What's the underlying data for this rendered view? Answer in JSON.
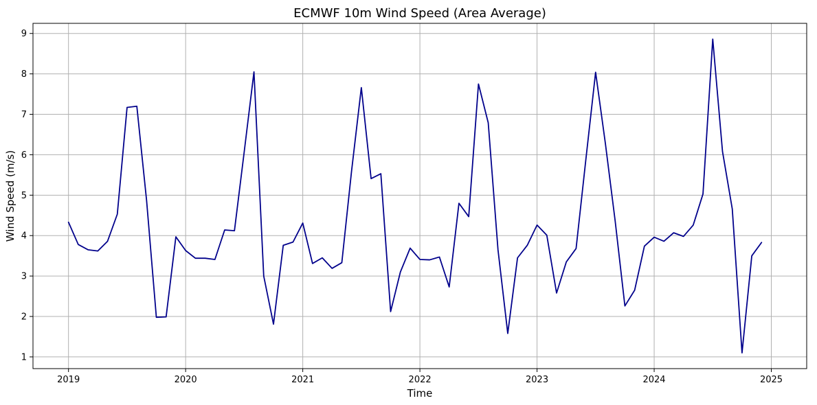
{
  "chart_data": {
    "type": "line",
    "title": "ECMWF 10m Wind Speed (Area Average)",
    "xlabel": "Time",
    "ylabel": "Wind Speed (m/s)",
    "x": [
      "2019-01",
      "2019-02",
      "2019-03",
      "2019-04",
      "2019-05",
      "2019-06",
      "2019-07",
      "2019-08",
      "2019-09",
      "2019-10",
      "2019-11",
      "2019-12",
      "2020-01",
      "2020-02",
      "2020-03",
      "2020-04",
      "2020-05",
      "2020-06",
      "2020-07",
      "2020-08",
      "2020-09",
      "2020-10",
      "2020-11",
      "2020-12",
      "2021-01",
      "2021-02",
      "2021-03",
      "2021-04",
      "2021-05",
      "2021-06",
      "2021-07",
      "2021-08",
      "2021-09",
      "2021-10",
      "2021-11",
      "2021-12",
      "2022-01",
      "2022-02",
      "2022-03",
      "2022-04",
      "2022-05",
      "2022-06",
      "2022-07",
      "2022-08",
      "2022-09",
      "2022-10",
      "2022-11",
      "2022-12",
      "2023-01",
      "2023-02",
      "2023-03",
      "2023-04",
      "2023-05",
      "2023-06",
      "2023-07",
      "2023-08",
      "2023-09",
      "2023-10",
      "2023-11",
      "2023-12",
      "2024-01",
      "2024-02",
      "2024-03",
      "2024-04",
      "2024-05",
      "2024-06",
      "2024-07",
      "2024-08",
      "2024-09",
      "2024-10",
      "2024-11",
      "2024-12"
    ],
    "series": [
      {
        "values": [
          4.33,
          3.78,
          3.65,
          3.62,
          3.86,
          4.53,
          7.17,
          7.2,
          4.87,
          1.98,
          1.99,
          3.97,
          3.63,
          3.44,
          3.44,
          3.41,
          4.14,
          4.12,
          6.07,
          8.05,
          3.0,
          1.81,
          3.76,
          3.84,
          4.31,
          3.31,
          3.45,
          3.19,
          3.33,
          5.6,
          7.66,
          5.41,
          5.53,
          2.12,
          3.1,
          3.69,
          3.41,
          3.4,
          3.47,
          2.73,
          4.8,
          4.47,
          7.75,
          6.79,
          3.65,
          1.58,
          3.45,
          3.76,
          4.26,
          4.01,
          2.58,
          3.35,
          3.68,
          5.88,
          8.04,
          6.28,
          4.37,
          2.26,
          2.65,
          3.74,
          3.96,
          3.86,
          4.07,
          3.98,
          4.26,
          5.03,
          8.86,
          6.08,
          4.66,
          1.1,
          3.5,
          3.83
        ],
        "color": "#00008b"
      }
    ],
    "x_ticks": [
      "2019",
      "2020",
      "2021",
      "2022",
      "2023",
      "2024",
      "2025"
    ],
    "y_ticks": [
      "1",
      "2",
      "3",
      "4",
      "5",
      "6",
      "7",
      "8",
      "9"
    ],
    "xlim": [
      "2018-09-12",
      "2025-04-20"
    ],
    "ylim": [
      0.71,
      9.25
    ],
    "grid": true,
    "grid_color": "#b0b0b0",
    "legend": "none"
  }
}
